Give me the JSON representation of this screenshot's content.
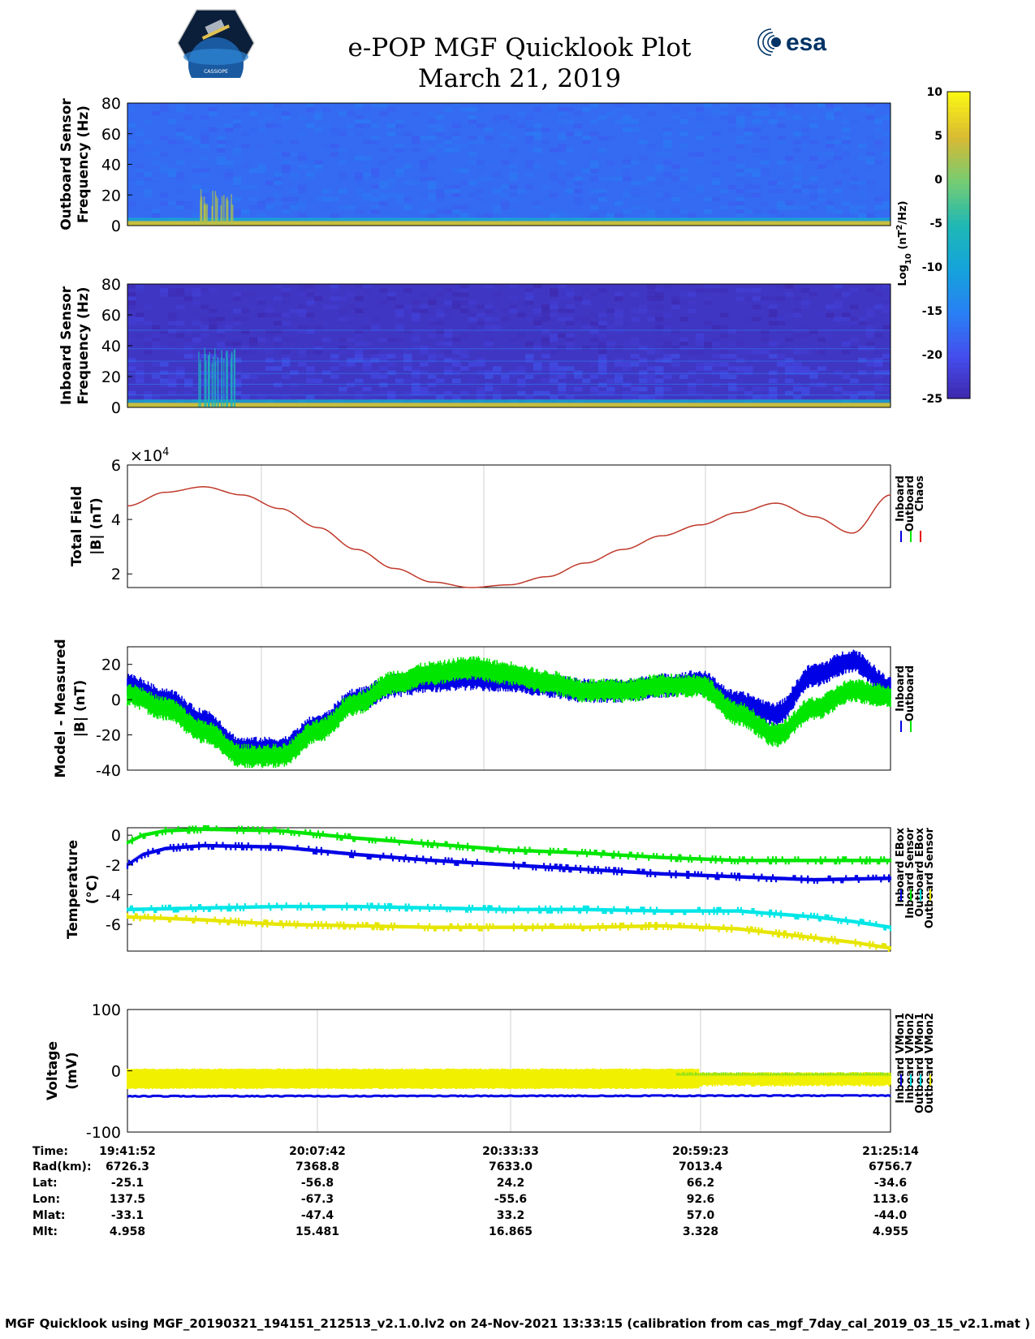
{
  "header": {
    "title_line1": "e-POP MGF Quicklook Plot",
    "title_line2": "March 21, 2019",
    "left_logo_caption": "CASSIOPE",
    "right_logo_text": "esa"
  },
  "chart_data": [
    {
      "id": "outboard-spectrogram",
      "type": "heatmap",
      "ylabel_line1": "Outboard Sensor",
      "ylabel_line2": "Frequency (Hz)",
      "ylim": [
        0,
        80
      ],
      "yticks": [
        "80",
        "60",
        "40",
        "20",
        "0"
      ],
      "description_values": {
        "background_log10_power": -17,
        "low_freq_band_hz": [
          0,
          3
        ],
        "burst_time_fraction": [
          0.09,
          0.14
        ]
      }
    },
    {
      "id": "inboard-spectrogram",
      "type": "heatmap",
      "ylabel_line1": "Inboard Sensor",
      "ylabel_line2": "Frequency (Hz)",
      "ylim": [
        0,
        80
      ],
      "yticks": [
        "80",
        "60",
        "40",
        "20",
        "0"
      ],
      "description_values": {
        "background_log10_power": -23,
        "low_freq_band_hz": [
          0,
          3
        ]
      }
    },
    {
      "id": "colorbar",
      "type": "heatmap",
      "label": "Log",
      "label_sub": "10",
      "label_rest": " (nT",
      "label_sup": "2",
      "label_end": "/Hz)",
      "ticks": [
        "10",
        "5",
        "0",
        "-5",
        "-10",
        "-15",
        "-20",
        "-25"
      ],
      "range": [
        -25,
        10
      ]
    },
    {
      "id": "total-field",
      "type": "line",
      "ylabel_line1": "Total Field",
      "ylabel_line2": "|B| (nT)",
      "multiplier_base": "×10",
      "multiplier_exp": "4",
      "ylim": [
        1.5,
        6
      ],
      "yticks": [
        "6",
        "4",
        "2"
      ],
      "legend": [
        "Inboard",
        "Outboard",
        "Chaos"
      ],
      "series": [
        {
          "name": "Chaos",
          "color": "#c0392b",
          "x": [
            0,
            0.05,
            0.1,
            0.15,
            0.2,
            0.25,
            0.3,
            0.35,
            0.4,
            0.45,
            0.5,
            0.55,
            0.6,
            0.65,
            0.7,
            0.75,
            0.8,
            0.85,
            0.9,
            0.95,
            1.0
          ],
          "y": [
            4.5,
            5.0,
            5.2,
            4.9,
            4.4,
            3.7,
            2.9,
            2.2,
            1.7,
            1.5,
            1.6,
            1.9,
            2.4,
            2.9,
            3.4,
            3.8,
            4.25,
            4.6,
            4.1,
            3.5,
            4.9
          ]
        }
      ]
    },
    {
      "id": "model-measured",
      "type": "line",
      "ylabel_line1": "Model - Measured",
      "ylabel_line2": "|B| (nT)",
      "ylim": [
        -40,
        30
      ],
      "yticks": [
        "20",
        "0",
        "-20",
        "-40"
      ],
      "legend": [
        "Inboard",
        "Outboard"
      ],
      "series": [
        {
          "name": "Inboard",
          "color": "#0000e6",
          "x": [
            0,
            0.05,
            0.1,
            0.15,
            0.2,
            0.25,
            0.3,
            0.35,
            0.4,
            0.45,
            0.5,
            0.55,
            0.6,
            0.65,
            0.7,
            0.75,
            0.8,
            0.85,
            0.9,
            0.95,
            1.0
          ],
          "y": [
            8,
            0,
            -12,
            -28,
            -28,
            -15,
            0,
            8,
            11,
            12,
            11,
            8,
            5,
            5,
            8,
            10,
            -2,
            -8,
            14,
            22,
            7
          ]
        },
        {
          "name": "Outboard",
          "color": "#00e600",
          "x": [
            0,
            0.05,
            0.1,
            0.15,
            0.2,
            0.25,
            0.3,
            0.35,
            0.4,
            0.45,
            0.5,
            0.55,
            0.6,
            0.65,
            0.7,
            0.75,
            0.8,
            0.85,
            0.9,
            0.95,
            1.0
          ],
          "y": [
            3,
            -5,
            -18,
            -32,
            -32,
            -18,
            -2,
            10,
            15,
            18,
            15,
            10,
            5,
            5,
            8,
            8,
            -8,
            -20,
            -5,
            5,
            2
          ]
        }
      ]
    },
    {
      "id": "temperature",
      "type": "line",
      "ylabel_line1": "Temperature",
      "ylabel_line2": "(°C)",
      "ylim": [
        -7.8,
        0.5
      ],
      "yticks": [
        "0",
        "-2",
        "-4",
        "-6"
      ],
      "legend": [
        "Inboard EBox",
        "Inboard Sensor",
        "Outboard EBox",
        "Outboard Sensor"
      ],
      "series": [
        {
          "name": "Inboard EBox",
          "color": "#00e600",
          "x": [
            0,
            0.02,
            0.05,
            0.1,
            0.2,
            0.3,
            0.4,
            0.5,
            0.6,
            0.7,
            0.8,
            0.9,
            1.0
          ],
          "y": [
            -0.5,
            0,
            0.3,
            0.4,
            0.3,
            -0.2,
            -0.6,
            -1.0,
            -1.2,
            -1.5,
            -1.7,
            -1.7,
            -1.7
          ]
        },
        {
          "name": "Inboard Sensor",
          "color": "#0000e6",
          "x": [
            0,
            0.02,
            0.05,
            0.1,
            0.2,
            0.3,
            0.4,
            0.5,
            0.6,
            0.7,
            0.8,
            0.9,
            1.0
          ],
          "y": [
            -2.0,
            -1.3,
            -0.9,
            -0.7,
            -0.8,
            -1.3,
            -1.7,
            -2.0,
            -2.3,
            -2.6,
            -2.8,
            -3.0,
            -2.9
          ]
        },
        {
          "name": "Outboard EBox",
          "color": "#00e6e6",
          "x": [
            0,
            0.1,
            0.2,
            0.3,
            0.4,
            0.5,
            0.6,
            0.7,
            0.8,
            0.9,
            0.95,
            1.0
          ],
          "y": [
            -5.0,
            -4.9,
            -4.8,
            -4.8,
            -4.9,
            -5.0,
            -5.0,
            -5.1,
            -5.1,
            -5.5,
            -5.8,
            -6.2
          ]
        },
        {
          "name": "Outboard Sensor",
          "color": "#e6e600",
          "x": [
            0,
            0.1,
            0.2,
            0.3,
            0.4,
            0.5,
            0.6,
            0.7,
            0.8,
            0.85,
            0.9,
            0.95,
            1.0
          ],
          "y": [
            -5.5,
            -5.7,
            -6.0,
            -6.1,
            -6.2,
            -6.2,
            -6.2,
            -6.1,
            -6.3,
            -6.6,
            -6.9,
            -7.2,
            -7.6
          ]
        }
      ]
    },
    {
      "id": "voltage",
      "type": "line",
      "ylabel_line1": "Voltage",
      "ylabel_line2": "(mV)",
      "ylim": [
        -100,
        100
      ],
      "yticks": [
        "100",
        "0",
        "-100"
      ],
      "legend": [
        "Inboard VMon1",
        "Inboard VMon2",
        "Outboard VMon1",
        "Outboard VMon2"
      ],
      "series": [
        {
          "name": "Inboard VMon1",
          "color": "#0000e6",
          "x": [
            0,
            1
          ],
          "y": [
            -42,
            -41
          ]
        },
        {
          "name": "Inboard VMon2",
          "color": "#00e600",
          "x": [
            0,
            1
          ],
          "y": [
            -16,
            -14
          ]
        },
        {
          "name": "Outboard VMon1",
          "color": "#00e6e6",
          "x": [
            0,
            1
          ],
          "y": [
            -16,
            -14
          ]
        },
        {
          "name": "Outboard VMon2",
          "color": "#e6e600",
          "x": [
            0,
            1
          ],
          "y": [
            -15,
            -15
          ]
        }
      ]
    }
  ],
  "ephemeris": {
    "labels": [
      "Time:",
      "Rad(km):",
      "Lat:",
      "Lon:",
      "Mlat:",
      "Mlt:"
    ],
    "columns": [
      [
        "19:41:52",
        "6726.3",
        "-25.1",
        "137.5",
        "-33.1",
        "4.958"
      ],
      [
        "20:07:42",
        "7368.8",
        "-56.8",
        "-67.3",
        "-47.4",
        "15.481"
      ],
      [
        "20:33:33",
        "7633.0",
        "24.2",
        "-55.6",
        "33.2",
        "16.865"
      ],
      [
        "20:59:23",
        "7013.4",
        "66.2",
        "92.6",
        "57.0",
        "3.328"
      ],
      [
        "21:25:14",
        "6756.7",
        "-34.6",
        "113.6",
        "-44.0",
        "4.955"
      ]
    ]
  },
  "footer": "MGF Quicklook using MGF_20190321_194151_212513_v2.1.0.lv2 on 24-Nov-2021 13:33:15 (calibration from cas_mgf_7day_cal_2019_03_15_v2.1.mat )"
}
